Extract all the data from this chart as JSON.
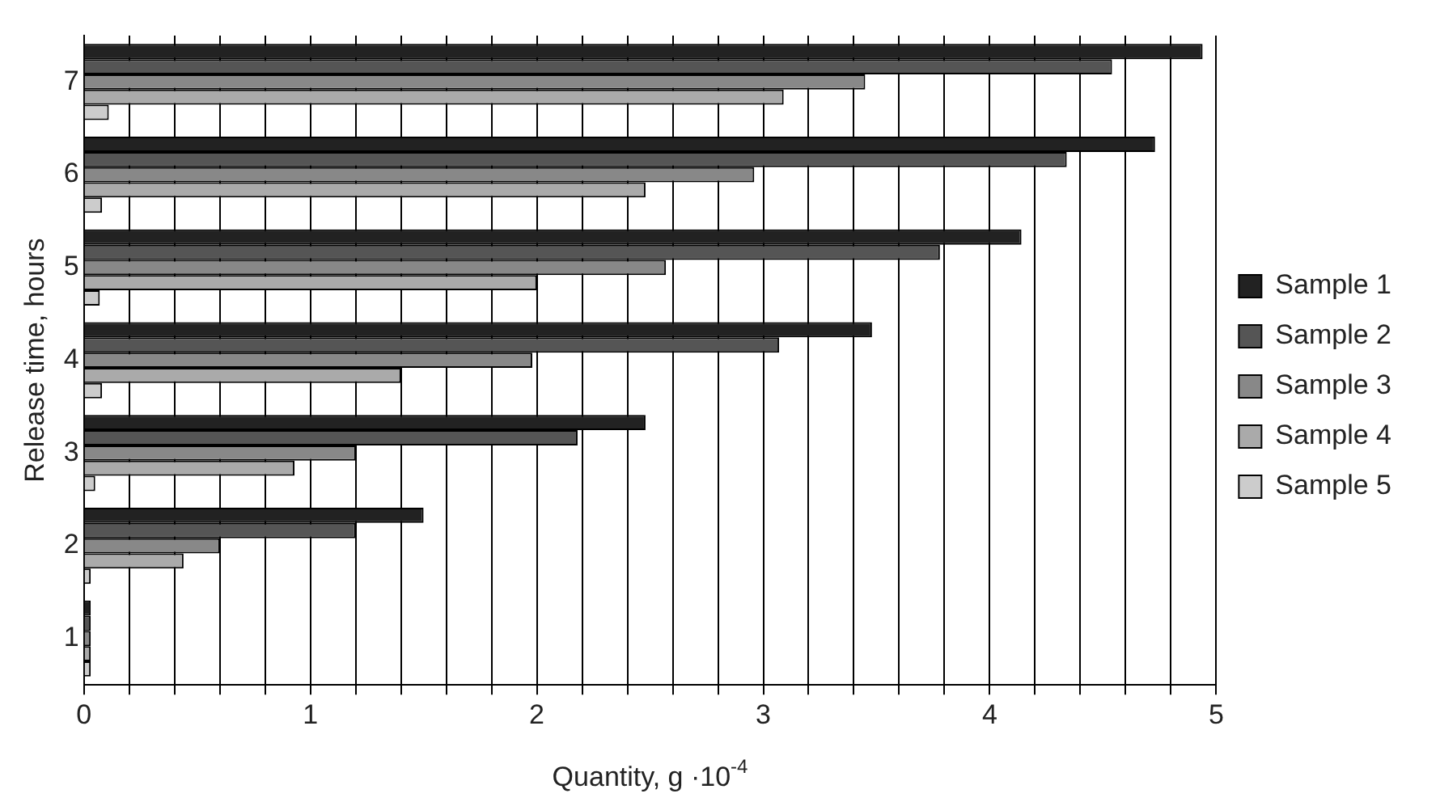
{
  "chart_data": {
    "type": "bar",
    "orientation": "horizontal",
    "xlabel": "Quantity, g ·10$^{-4}$",
    "ylabel": "Release time, hours",
    "categories": [
      "7",
      "6",
      "5",
      "4",
      "3",
      "2",
      "1"
    ],
    "series": [
      {
        "name": "Sample 1",
        "color": "#222222",
        "values": [
          4.94,
          4.73,
          4.14,
          3.48,
          2.48,
          1.5,
          0.03
        ]
      },
      {
        "name": "Sample 2",
        "color": "#555555",
        "values": [
          4.54,
          4.34,
          3.78,
          3.07,
          2.18,
          1.2,
          0.03
        ]
      },
      {
        "name": "Sample 3",
        "color": "#888888",
        "values": [
          3.45,
          2.96,
          2.57,
          1.98,
          1.2,
          0.6,
          0.03
        ]
      },
      {
        "name": "Sample 4",
        "color": "#aaaaaa",
        "values": [
          3.09,
          2.48,
          2.0,
          1.4,
          0.93,
          0.44,
          0.03
        ]
      },
      {
        "name": "Sample 5",
        "color": "#cccccc",
        "values": [
          0.11,
          0.08,
          0.07,
          0.08,
          0.05,
          0.03,
          0.03
        ]
      }
    ],
    "xlim": [
      0,
      5
    ],
    "xticks": [
      0,
      {
        "value": 0.2,
        "label": null
      },
      {
        "value": 0.4,
        "label": null
      },
      {
        "value": 0.6,
        "label": null
      },
      {
        "value": 0.8,
        "label": null
      },
      1,
      {
        "value": 1.2,
        "label": null
      },
      {
        "value": 1.4,
        "label": null
      },
      {
        "value": 1.6,
        "label": null
      },
      {
        "value": 1.8,
        "label": null
      },
      2,
      {
        "value": 2.2,
        "label": null
      },
      {
        "value": 2.4,
        "label": null
      },
      {
        "value": 2.6,
        "label": null
      },
      {
        "value": 2.8,
        "label": null
      },
      3,
      {
        "value": 3.2,
        "label": null
      },
      {
        "value": 3.4,
        "label": null
      },
      {
        "value": 3.6,
        "label": null
      },
      {
        "value": 3.8,
        "label": null
      },
      4,
      {
        "value": 4.2,
        "label": null
      },
      {
        "value": 4.4,
        "label": null
      },
      {
        "value": 4.6,
        "label": null
      },
      {
        "value": 4.8,
        "label": null
      },
      5
    ],
    "grid": "x",
    "legend": "right"
  }
}
